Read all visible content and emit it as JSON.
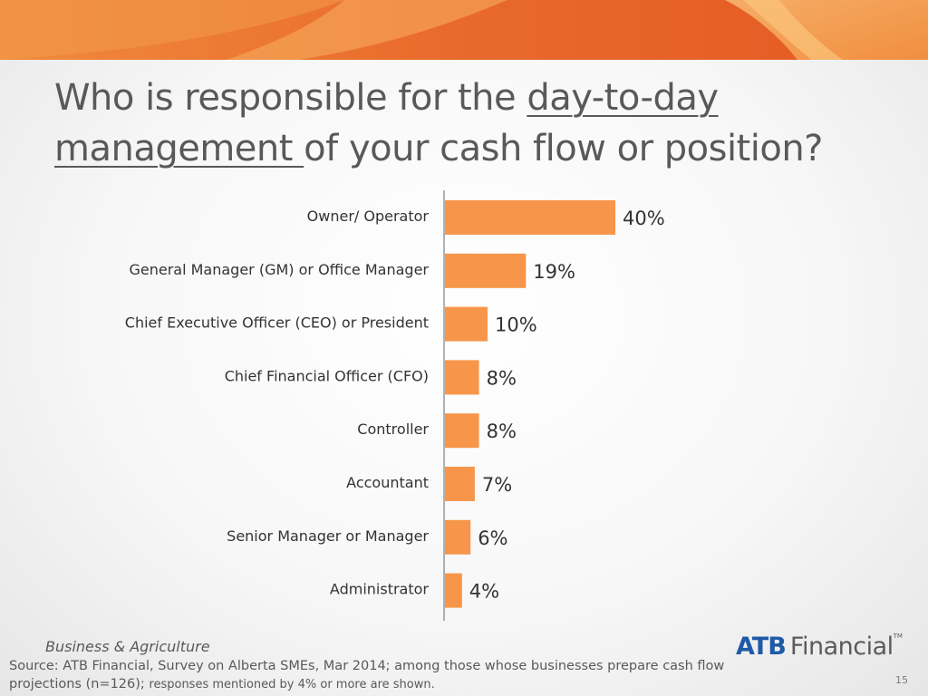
{
  "slide": {
    "title_part1": "Who is responsible for the ",
    "title_underlined1": "day-to-day",
    "title_underlined2": "management ",
    "title_part2": "of your cash flow or position?",
    "brand_tagline": "Business & Agriculture",
    "source_line1": "Source:  ATB Financial, Survey on Alberta SMEs, Mar 2014; among those whose businesses prepare cash flow",
    "source_line2a": "projections (n=126); ",
    "source_line2b": "responses mentioned by 4% or more are shown.",
    "logo_atb": "ATB",
    "logo_financial": "Financial",
    "logo_tm": "TM",
    "page_number": "15"
  },
  "colors": {
    "bar": "#f7964a",
    "banner_dark": "#e8622a",
    "banner_light": "#f4a15a",
    "axis": "#666666"
  },
  "chart_data": {
    "type": "bar",
    "orientation": "horizontal",
    "categories": [
      "Owner/ Operator",
      "General Manager (GM) or Office Manager",
      "Chief Executive Officer (CEO) or President",
      "Chief Financial Officer (CFO)",
      "Controller",
      "Accountant",
      "Senior Manager or Manager",
      "Administrator"
    ],
    "values": [
      40,
      19,
      10,
      8,
      8,
      7,
      6,
      4
    ],
    "value_labels": [
      "40%",
      "19%",
      "10%",
      "8%",
      "8%",
      "7%",
      "6%",
      "4%"
    ],
    "xlim": [
      0,
      100
    ],
    "grid": false,
    "legend": "none"
  }
}
